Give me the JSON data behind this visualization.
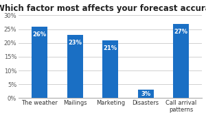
{
  "title": "Which factor most affects your forecast accuracy?",
  "categories": [
    "The weather",
    "Mailings",
    "Marketing",
    "Disasters",
    "Call arrival\npatterns"
  ],
  "values": [
    26,
    23,
    21,
    3,
    27
  ],
  "bar_color": "#1a6fc4",
  "label_color": "#ffffff",
  "ylim": [
    0,
    30
  ],
  "yticks": [
    0,
    5,
    10,
    15,
    20,
    25,
    30
  ],
  "ytick_labels": [
    "0%",
    "5%",
    "10%",
    "15%",
    "20%",
    "25%",
    "30%"
  ],
  "background_color": "#ffffff",
  "plot_bg_color": "#ffffff",
  "grid_color": "#d0d0d0",
  "title_fontsize": 8.5,
  "bar_label_fontsize": 6,
  "tick_fontsize": 6,
  "bar_width": 0.45
}
